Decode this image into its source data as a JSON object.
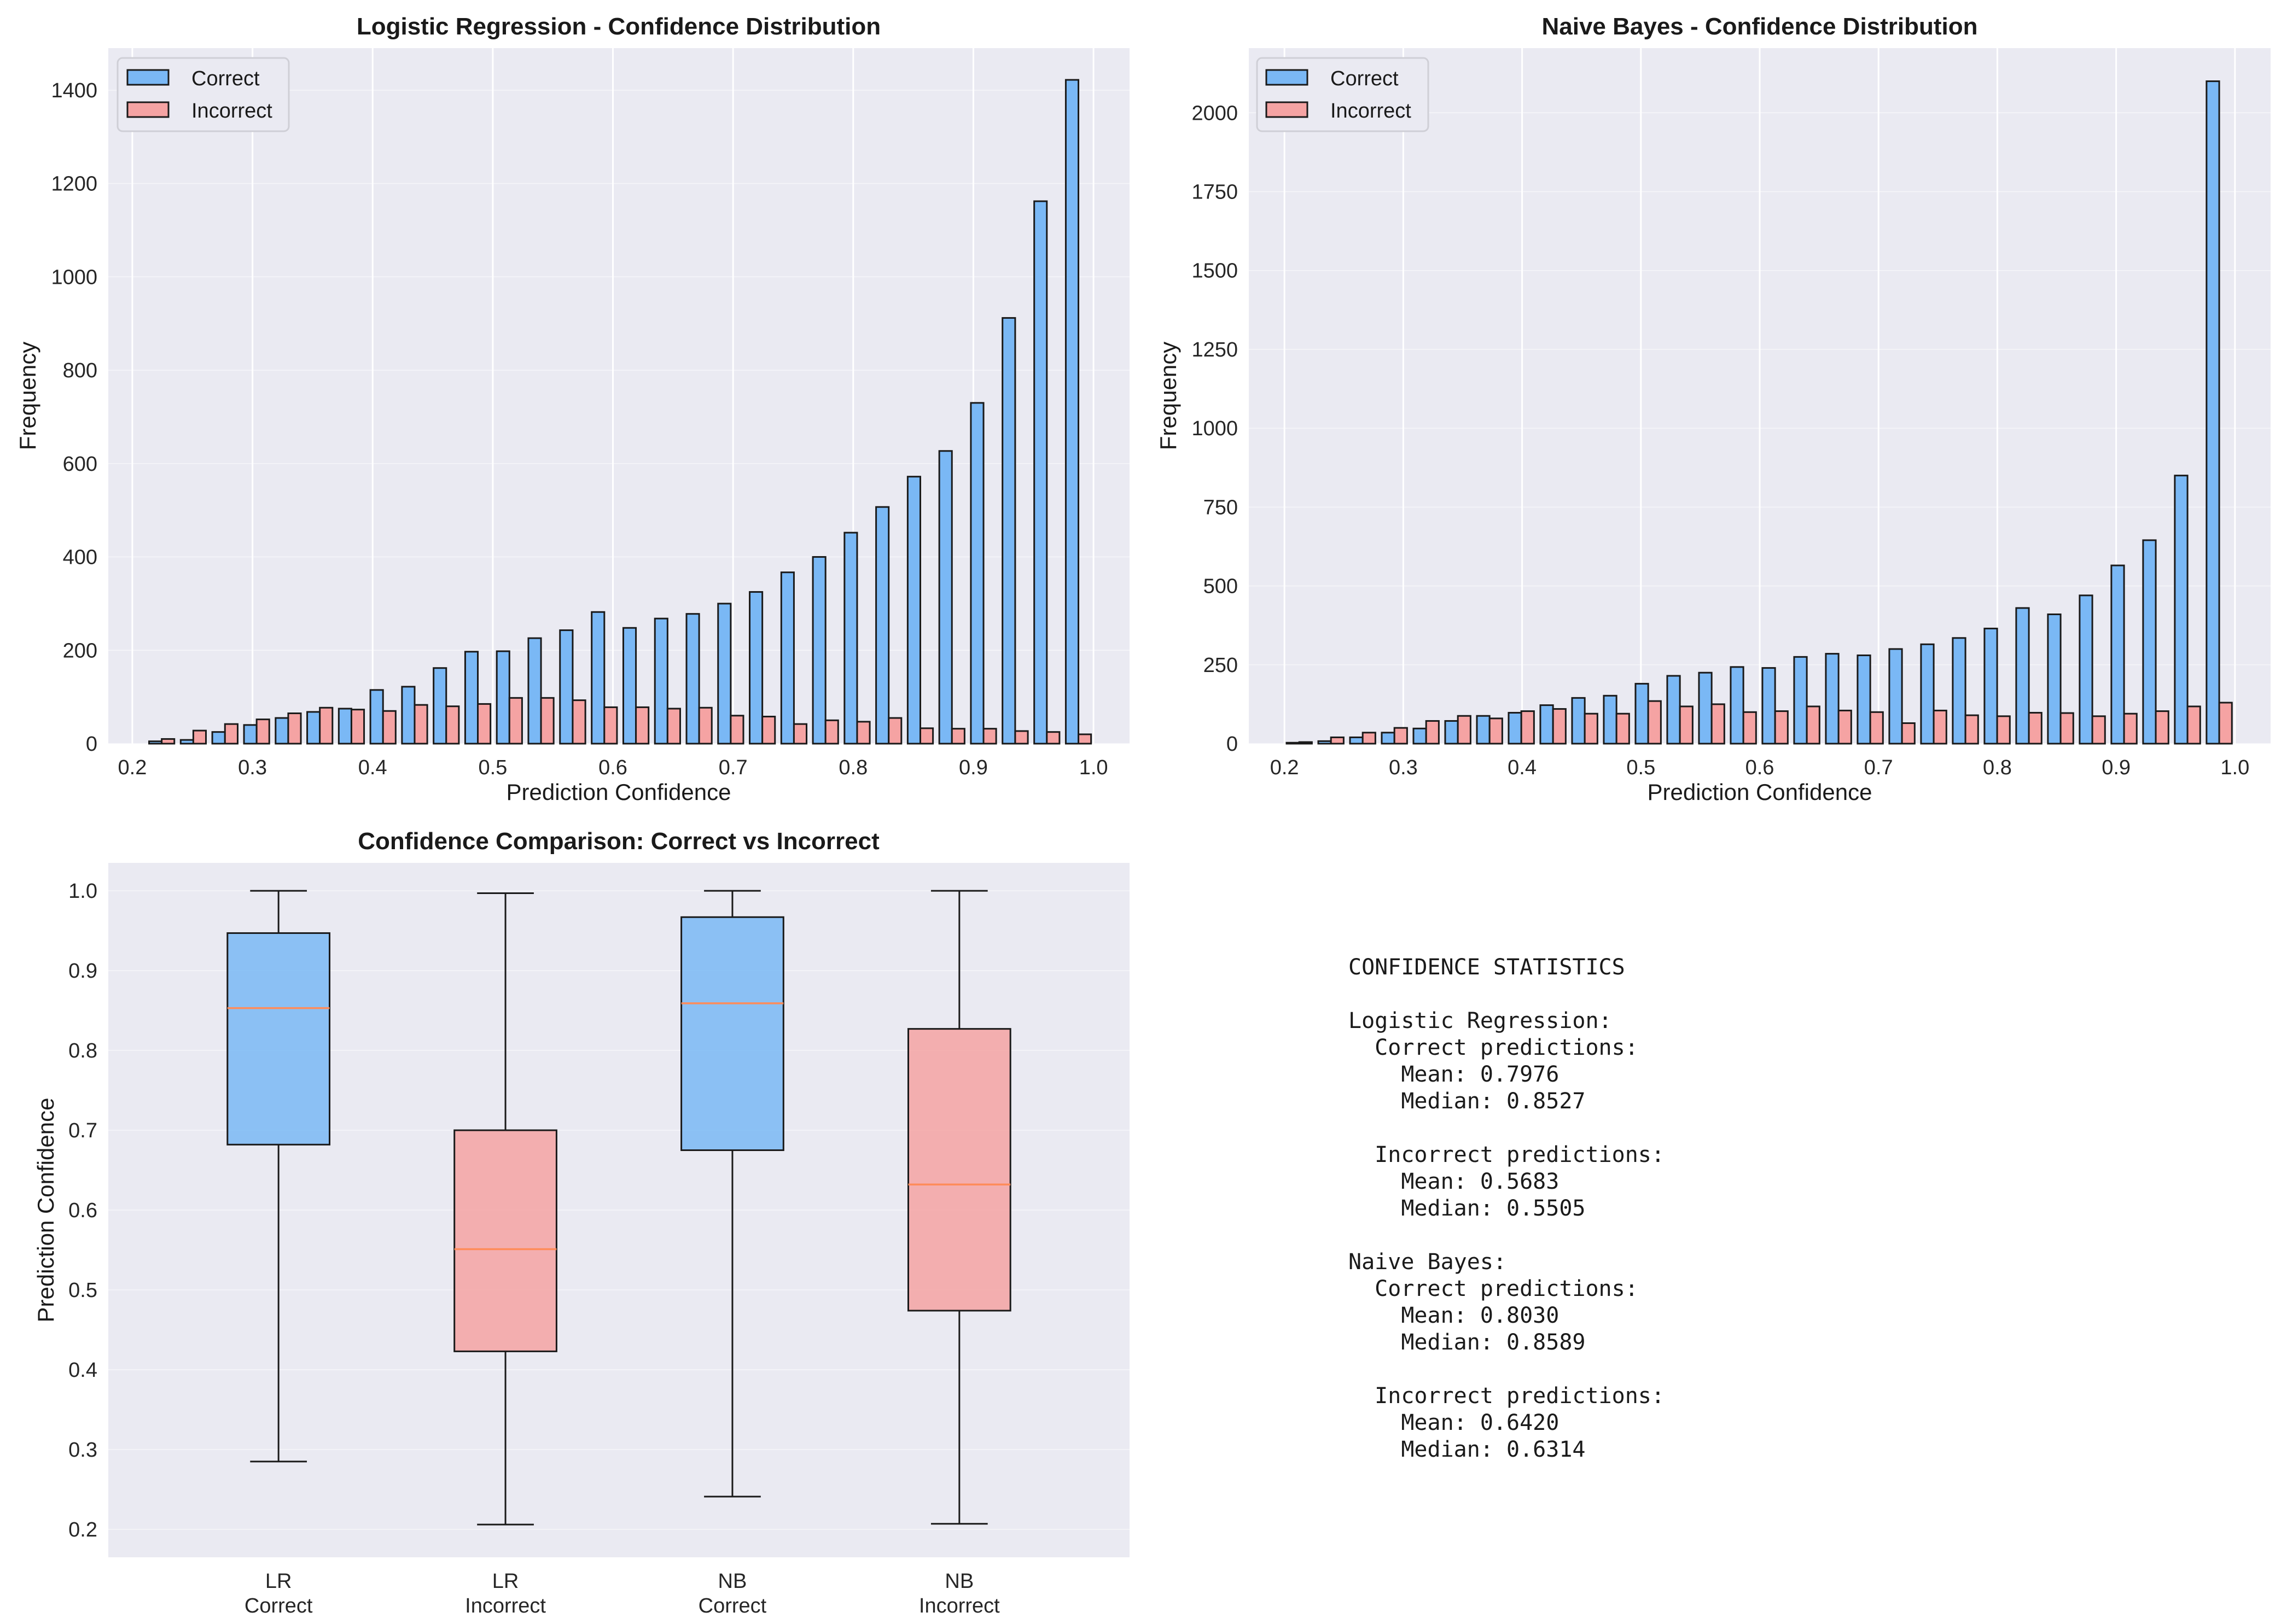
{
  "chart_data": [
    {
      "type": "bar",
      "title": "Logistic Regression - Confidence Distribution",
      "xlabel": "Prediction Confidence",
      "ylabel": "Frequency",
      "xlim": [
        0.18,
        1.03
      ],
      "ylim": [
        0,
        1490
      ],
      "xticks": [
        0.2,
        0.3,
        0.4,
        0.5,
        0.6,
        0.7,
        0.8,
        0.9,
        1.0
      ],
      "xtick_labels": [
        "0.2",
        "0.3",
        "0.4",
        "0.5",
        "0.6",
        "0.7",
        "0.8",
        "0.9",
        "1.0"
      ],
      "yticks": [
        0,
        200,
        400,
        600,
        800,
        1000,
        1200,
        1400
      ],
      "ytick_labels": [
        "0",
        "200",
        "400",
        "600",
        "800",
        "1000",
        "1200",
        "1400"
      ],
      "grid": true,
      "legend": "top-left",
      "bin_edges": [
        0.2113,
        0.2376,
        0.2639,
        0.2903,
        0.3166,
        0.3429,
        0.3692,
        0.3955,
        0.4218,
        0.4481,
        0.4744,
        0.5007,
        0.527,
        0.5533,
        0.5797,
        0.606,
        0.6323,
        0.6586,
        0.6849,
        0.7112,
        0.7375,
        0.7638,
        0.7901,
        0.8164,
        0.8427,
        0.869,
        0.8953,
        0.9216,
        0.948,
        0.9743,
        1.0006
      ],
      "series": [
        {
          "name": "Correct",
          "color": "#7ab8f5",
          "values": [
            5,
            8,
            25,
            40,
            55,
            68,
            75,
            115,
            122,
            162,
            197,
            198,
            226,
            243,
            282,
            248,
            268,
            278,
            300,
            325,
            367,
            400,
            452,
            507,
            572,
            627,
            730,
            912,
            1162,
            1422
          ]
        },
        {
          "name": "Incorrect",
          "color": "#f5a3a3",
          "values": [
            10,
            28,
            42,
            52,
            65,
            77,
            73,
            70,
            83,
            80,
            85,
            98,
            98,
            93,
            78,
            78,
            75,
            77,
            60,
            58,
            42,
            50,
            47,
            55,
            33,
            32,
            32,
            27,
            25,
            20
          ]
        }
      ]
    },
    {
      "type": "bar",
      "title": "Naive Bayes - Confidence Distribution",
      "xlabel": "Prediction Confidence",
      "ylabel": "Frequency",
      "xlim": [
        0.17,
        1.03
      ],
      "ylim": [
        0,
        2205
      ],
      "xticks": [
        0.2,
        0.3,
        0.4,
        0.5,
        0.6,
        0.7,
        0.8,
        0.9,
        1.0
      ],
      "xtick_labels": [
        "0.2",
        "0.3",
        "0.4",
        "0.5",
        "0.6",
        "0.7",
        "0.8",
        "0.9",
        "1.0"
      ],
      "yticks": [
        0,
        250,
        500,
        750,
        1000,
        1250,
        1500,
        1750,
        2000
      ],
      "ytick_labels": [
        "0",
        "250",
        "500",
        "750",
        "1000",
        "1250",
        "1500",
        "1750",
        "2000"
      ],
      "grid": true,
      "legend": "top-left",
      "bin_edges": [
        0.1991,
        0.2258,
        0.2525,
        0.2792,
        0.3059,
        0.3326,
        0.3593,
        0.386,
        0.4127,
        0.4394,
        0.4661,
        0.4928,
        0.5195,
        0.5462,
        0.5729,
        0.5996,
        0.6263,
        0.653,
        0.6797,
        0.7064,
        0.7331,
        0.7598,
        0.7865,
        0.8132,
        0.8399,
        0.8666,
        0.8933,
        0.92,
        0.9467,
        0.9734,
        1.0001
      ],
      "series": [
        {
          "name": "Correct",
          "color": "#7ab8f5",
          "values": [
            3,
            8,
            20,
            35,
            48,
            72,
            88,
            98,
            122,
            145,
            152,
            190,
            215,
            225,
            243,
            240,
            275,
            285,
            280,
            300,
            315,
            335,
            365,
            430,
            410,
            470,
            565,
            645,
            850,
            2100
          ]
        },
        {
          "name": "Incorrect",
          "color": "#f5a3a3",
          "values": [
            5,
            20,
            35,
            50,
            72,
            88,
            80,
            103,
            110,
            95,
            95,
            135,
            118,
            125,
            100,
            103,
            118,
            105,
            100,
            65,
            105,
            90,
            87,
            98,
            97,
            87,
            95,
            103,
            118,
            130
          ]
        }
      ]
    },
    {
      "type": "box",
      "title": "Confidence Comparison: Correct vs Incorrect",
      "xlabel": "",
      "ylabel": "Prediction Confidence",
      "ylim": [
        0.165,
        1.035
      ],
      "yticks": [
        0.2,
        0.3,
        0.4,
        0.5,
        0.6,
        0.7,
        0.8,
        0.9,
        1.0
      ],
      "ytick_labels": [
        "0.2",
        "0.3",
        "0.4",
        "0.5",
        "0.6",
        "0.7",
        "0.8",
        "0.9",
        "1.0"
      ],
      "grid": true,
      "categories": [
        [
          "LR",
          "Correct"
        ],
        [
          "LR",
          "Incorrect"
        ],
        [
          "NB",
          "Correct"
        ],
        [
          "NB",
          "Incorrect"
        ]
      ],
      "boxes": [
        {
          "color": "#7ab8f5",
          "whislo": 0.285,
          "q1": 0.682,
          "med": 0.853,
          "q3": 0.947,
          "whishi": 1.0
        },
        {
          "color": "#f5a3a3",
          "whislo": 0.206,
          "q1": 0.423,
          "med": 0.551,
          "q3": 0.7,
          "whishi": 0.997
        },
        {
          "color": "#7ab8f5",
          "whislo": 0.241,
          "q1": 0.675,
          "med": 0.859,
          "q3": 0.967,
          "whishi": 1.0
        },
        {
          "color": "#f5a3a3",
          "whislo": 0.207,
          "q1": 0.474,
          "med": 0.632,
          "q3": 0.827,
          "whishi": 1.0
        }
      ]
    }
  ],
  "stats": {
    "heading": "CONFIDENCE STATISTICS",
    "lr_heading": "Logistic Regression:",
    "lr_correct_heading": "  Correct predictions:",
    "lr_correct_mean": "    Mean: 0.7976",
    "lr_correct_median": "    Median: 0.8527",
    "lr_incorrect_heading": "  Incorrect predictions:",
    "lr_incorrect_mean": "    Mean: 0.5683",
    "lr_incorrect_median": "    Median: 0.5505",
    "nb_heading": "Naive Bayes:",
    "nb_correct_heading": "  Correct predictions:",
    "nb_correct_mean": "    Mean: 0.8030",
    "nb_correct_median": "    Median: 0.8589",
    "nb_incorrect_heading": "  Incorrect predictions:",
    "nb_incorrect_mean": "    Mean: 0.6420",
    "nb_incorrect_median": "    Median: 0.6314"
  }
}
